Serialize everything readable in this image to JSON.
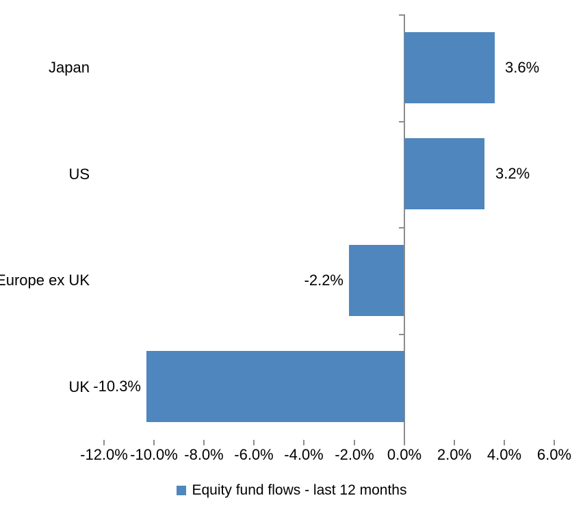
{
  "chart_data": {
    "type": "bar",
    "orientation": "horizontal",
    "categories": [
      "Japan",
      "US",
      "Europe ex UK",
      "UK"
    ],
    "series": [
      {
        "name": "Equity fund flows - last 12 months",
        "values": [
          3.6,
          3.2,
          -2.2,
          -10.3
        ],
        "data_labels": [
          "3.6%",
          "3.2%",
          "-2.2%",
          "-10.3%"
        ]
      }
    ],
    "xlim": [
      -12,
      6
    ],
    "x_ticks": [
      -12,
      -10,
      -8,
      -6,
      -4,
      -2,
      0,
      2,
      4,
      6
    ],
    "x_tick_labels": [
      "-12.0%",
      "-10.0%",
      "-8.0%",
      "-6.0%",
      "-4.0%",
      "-2.0%",
      "0.0%",
      "2.0%",
      "4.0%",
      "6.0%"
    ],
    "grid": false,
    "legend_position": "bottom",
    "bar_color": "#4E86BD",
    "axis_color": "#8C8C8C",
    "text_color": "#000000"
  },
  "legend": {
    "label": "Equity fund flows - last 12 months",
    "marker": "blue-square"
  }
}
